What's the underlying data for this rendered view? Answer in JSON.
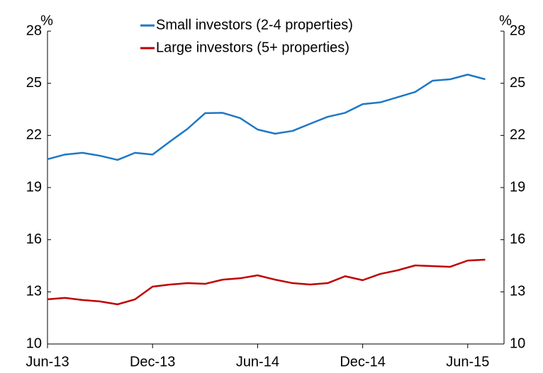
{
  "chart_data": {
    "type": "line",
    "y_label_left": "%",
    "y_label_right": "%",
    "categories": [
      "Jun-13",
      null,
      null,
      null,
      null,
      null,
      "Dec-13",
      null,
      null,
      null,
      null,
      null,
      "Jun-14",
      null,
      null,
      null,
      null,
      null,
      "Dec-14",
      null,
      null,
      null,
      null,
      null,
      "Jun-15",
      null
    ],
    "series": [
      {
        "name": "Small investors (2-4 properties)",
        "color": "#1f77c4",
        "values": [
          20.63,
          20.9,
          21.0,
          20.83,
          20.59,
          21.0,
          20.9,
          21.65,
          22.38,
          23.28,
          23.3,
          23.0,
          22.34,
          22.1,
          22.26,
          22.67,
          23.07,
          23.3,
          23.8,
          23.9,
          24.2,
          24.5,
          25.15,
          25.23,
          25.5,
          25.23
        ]
      },
      {
        "name": "Large investors (5+ properties)",
        "color": "#c00000",
        "values": [
          12.57,
          12.65,
          12.53,
          12.45,
          12.28,
          12.57,
          13.3,
          13.42,
          13.5,
          13.46,
          13.7,
          13.78,
          13.95,
          13.7,
          13.5,
          13.42,
          13.5,
          13.9,
          13.67,
          14.03,
          14.24,
          14.52,
          14.48,
          14.44,
          14.8,
          14.85
        ]
      }
    ],
    "ylim": [
      10,
      28
    ],
    "yticks": [
      10,
      13,
      16,
      19,
      22,
      25,
      28
    ],
    "y2lim": [
      10,
      28
    ],
    "y2ticks": [
      10,
      13,
      16,
      19,
      22,
      25,
      28
    ],
    "legend": "top"
  }
}
